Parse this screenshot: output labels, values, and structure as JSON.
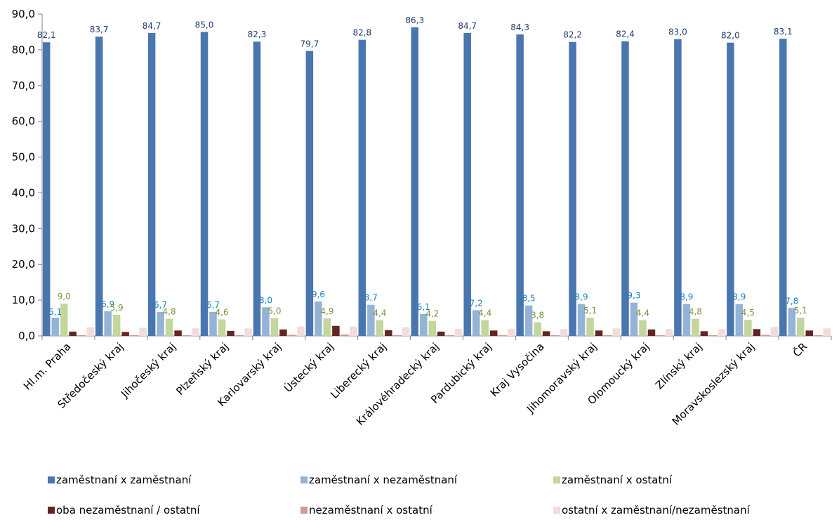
{
  "chart_data": {
    "type": "bar",
    "title": "",
    "xlabel": "",
    "ylabel": "",
    "ylim": [
      0,
      90
    ],
    "yticks": [
      "0,0",
      "10,0",
      "20,0",
      "30,0",
      "40,0",
      "50,0",
      "60,0",
      "70,0",
      "80,0",
      "90,0"
    ],
    "grid": false,
    "legend_position": "bottom",
    "categories": [
      "Hl.m. Praha",
      "Středočeský kraj",
      "Jihočeský kraj",
      "Plzeňský kraj",
      "Karlovarský kraj",
      "Ústecký kraj",
      "Liberecký kraj",
      "Královéhradecký kraj",
      "Pardubický kraj",
      "Kraj Vysočina",
      "Jihomoravský kraj",
      "Olomoucký kraj",
      "Zlínský kraj",
      "Moravskoslezský kraj",
      "ČR"
    ],
    "series": [
      {
        "name": "zaměstnaní x zaměstnaní",
        "color": "#4a76b0",
        "label_color": "#1f3c73",
        "labeled": true,
        "values": [
          82.1,
          83.7,
          84.7,
          85.0,
          82.3,
          79.7,
          82.8,
          86.3,
          84.7,
          84.3,
          82.2,
          82.4,
          83.0,
          82.0,
          83.1
        ],
        "labels": [
          "82,1",
          "83,7",
          "84,7",
          "85,0",
          "82,3",
          "79,7",
          "82,8",
          "86,3",
          "84,7",
          "84,3",
          "82,2",
          "82,4",
          "83,0",
          "82,0",
          "83,1"
        ]
      },
      {
        "name": "zaměstnaní x nezaměstnaní",
        "color": "#95b3d7",
        "label_color": "#1b7fc4",
        "labeled": true,
        "values": [
          5.1,
          6.9,
          6.7,
          6.7,
          8.0,
          9.6,
          8.7,
          6.1,
          7.2,
          8.5,
          8.9,
          9.3,
          8.9,
          8.9,
          7.8
        ],
        "labels": [
          "5,1",
          "6,9",
          "6,7",
          "6,7",
          "8,0",
          "9,6",
          "8,7",
          "6,1",
          "7,2",
          "8,5",
          "8,9",
          "9,3",
          "8,9",
          "8,9",
          "7,8"
        ]
      },
      {
        "name": "zaměstnaní x ostatní",
        "color": "#c3d69b",
        "label_color": "#77933c",
        "labeled": true,
        "values": [
          9.0,
          5.9,
          4.8,
          4.6,
          5.0,
          4.9,
          4.4,
          4.2,
          4.4,
          3.8,
          5.1,
          4.4,
          4.8,
          4.5,
          5.1
        ],
        "labels": [
          "9,0",
          "5,9",
          "4,8",
          "4,6",
          "5,0",
          "4,9",
          "4,4",
          "4,2",
          "4,4",
          "3,8",
          "5,1",
          "4,4",
          "4,8",
          "4,5",
          "5,1"
        ]
      },
      {
        "name": "oba nezaměstnaní / ostatní",
        "color": "#632523",
        "labeled": false,
        "values": [
          1.2,
          1.1,
          1.5,
          1.4,
          1.8,
          2.8,
          1.6,
          1.2,
          1.5,
          1.3,
          1.5,
          1.8,
          1.3,
          1.9,
          1.5
        ]
      },
      {
        "name": "nezaměstnaní x ostatní",
        "color": "#d99694",
        "labeled": false,
        "values": [
          0.2,
          0.2,
          0.2,
          0.2,
          0.3,
          0.4,
          0.2,
          0.2,
          0.2,
          0.2,
          0.2,
          0.2,
          0.2,
          0.3,
          0.2
        ]
      },
      {
        "name": "ostatní x zaměstnaní/nezaměstnaní",
        "color": "#f2dcdb",
        "labeled": false,
        "values": [
          2.4,
          2.3,
          2.1,
          2.1,
          2.6,
          2.6,
          2.4,
          2.0,
          2.0,
          1.9,
          2.1,
          1.9,
          1.9,
          2.5,
          2.1
        ]
      }
    ]
  }
}
